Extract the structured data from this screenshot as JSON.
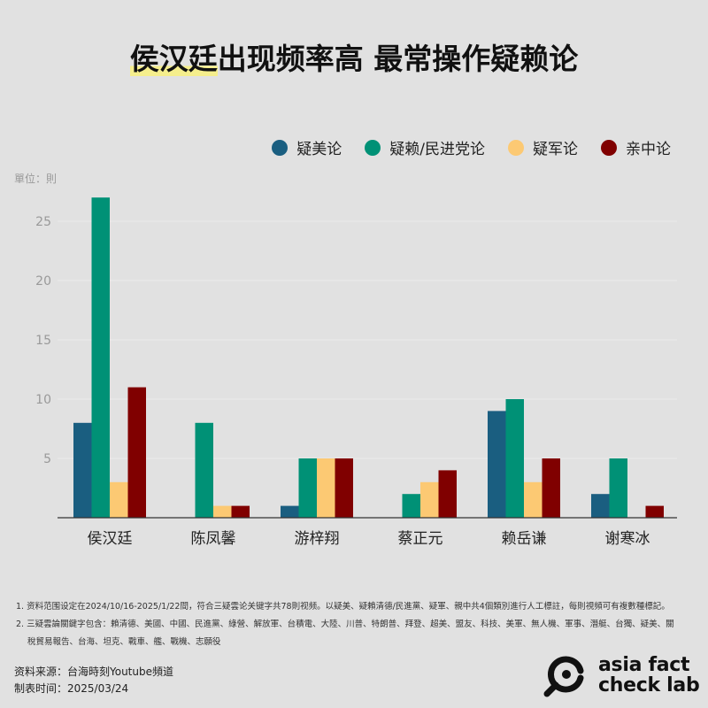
{
  "title_highlight": "侯汉廷",
  "title_rest": "出现频率高 最常操作疑赖论",
  "unit": "單位：則",
  "chart_data": {
    "type": "bar",
    "title": "侯汉廷出现频率高 最常操作疑赖论",
    "categories": [
      "侯汉廷",
      "陈凤馨",
      "游梓翔",
      "蔡正元",
      "赖岳谦",
      "谢寒冰"
    ],
    "series": [
      {
        "name": "疑美论",
        "color": "#1a5e80",
        "values": [
          8,
          0,
          1,
          0,
          9,
          2
        ]
      },
      {
        "name": "疑赖/民进党论",
        "color": "#009176",
        "values": [
          27,
          8,
          5,
          2,
          10,
          5
        ]
      },
      {
        "name": "疑军论",
        "color": "#fcc973",
        "values": [
          3,
          1,
          5,
          3,
          3,
          0
        ]
      },
      {
        "name": "亲中论",
        "color": "#800000",
        "values": [
          11,
          1,
          5,
          4,
          5,
          1
        ]
      }
    ],
    "ylim": [
      0,
      27.5
    ],
    "yticks": [
      5,
      10,
      15,
      20,
      25
    ],
    "ylabel": "單位：則",
    "grid": true,
    "legend": "top-right"
  },
  "notes": [
    "1. 资料范围设定在2024/10/16-2025/1/22間，符合三疑雲论关键字共78則视频。以疑美、疑賴清德/民進黨、疑軍、親中共4個類別進行人工標註，每則視頻可有複數種標記。",
    "2. 三疑雲論關鍵字包含：賴清德、美國、中國、民進黨、綠營、解放軍、台積電、大陸、川普、特朗普、拜登、超美、盟友、科技、美軍、無人機、軍事、潛艇、台獨、疑美、關",
    "稅貿易報告、台海、坦克、戰車、艦、戰機、志願役"
  ],
  "source": "资料来源：台海時刻Youtube頻道",
  "date": "制表时间：2025/03/24",
  "logo": {
    "line1": "asia fact",
    "line2": "check lab"
  }
}
